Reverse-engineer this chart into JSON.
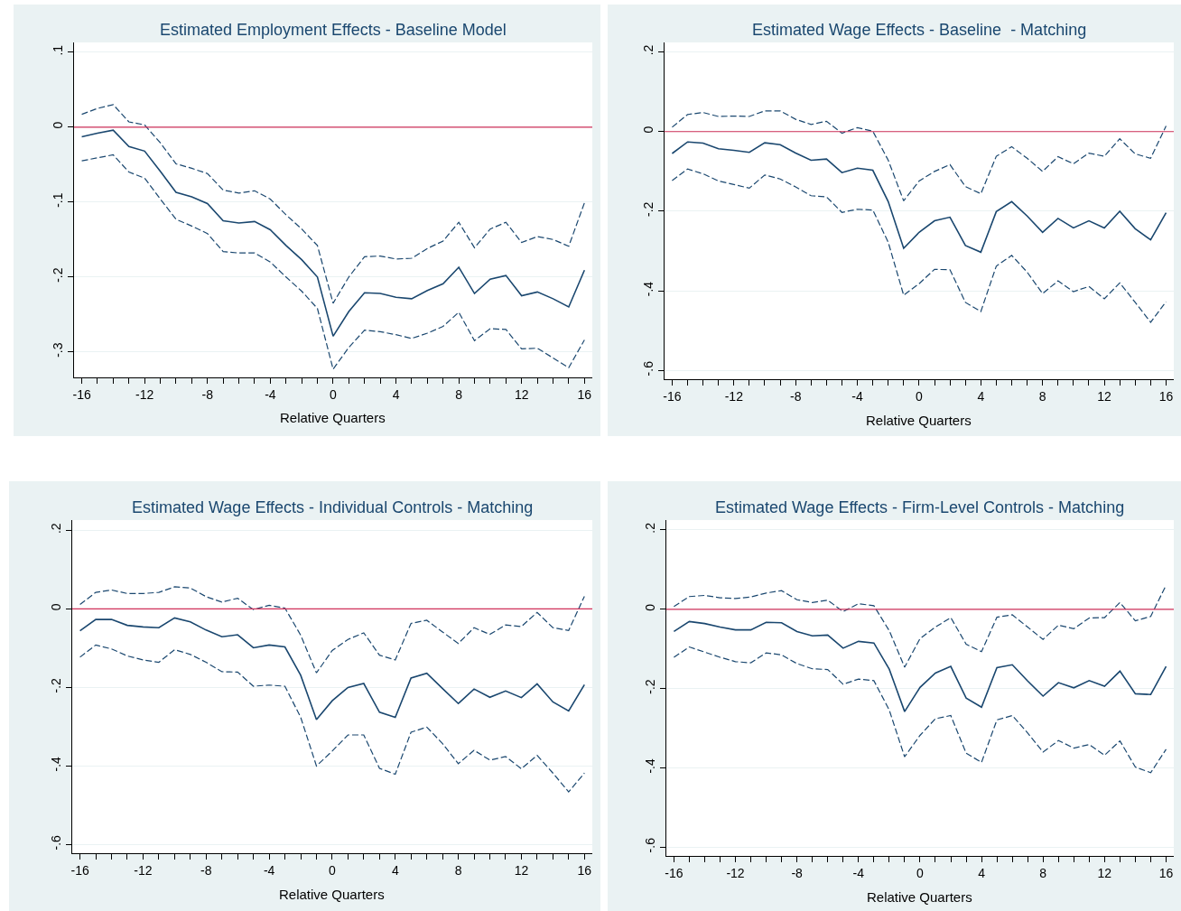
{
  "chart_data": [
    {
      "type": "line",
      "title": "Estimated Employment Effects - Baseline Model",
      "xlabel": "Relative Quarters",
      "grid": "y",
      "x": [
        -16,
        -15,
        -14,
        -13,
        -12,
        -11,
        -10,
        -9,
        -8,
        -7,
        -6,
        -5,
        -4,
        -3,
        -2,
        -1,
        0,
        1,
        2,
        3,
        4,
        5,
        6,
        7,
        8,
        9,
        10,
        11,
        12,
        13,
        14,
        15,
        16
      ],
      "xlim": [
        -16.5,
        16.5
      ],
      "xticks": [
        {
          "value": -16,
          "label": "-16"
        },
        {
          "value": -15,
          "label": null
        },
        {
          "value": -14,
          "label": null
        },
        {
          "value": -13,
          "label": null
        },
        {
          "value": -12,
          "label": "-12"
        },
        {
          "value": -11,
          "label": null
        },
        {
          "value": -10,
          "label": null
        },
        {
          "value": -9,
          "label": null
        },
        {
          "value": -8,
          "label": "-8"
        },
        {
          "value": -7,
          "label": null
        },
        {
          "value": -6,
          "label": null
        },
        {
          "value": -5,
          "label": null
        },
        {
          "value": -4,
          "label": "-4"
        },
        {
          "value": -3,
          "label": null
        },
        {
          "value": -2,
          "label": null
        },
        {
          "value": -1,
          "label": null
        },
        {
          "value": 0,
          "label": "0"
        },
        {
          "value": 1,
          "label": null
        },
        {
          "value": 2,
          "label": null
        },
        {
          "value": 3,
          "label": null
        },
        {
          "value": 4,
          "label": "4"
        },
        {
          "value": 5,
          "label": null
        },
        {
          "value": 6,
          "label": null
        },
        {
          "value": 7,
          "label": null
        },
        {
          "value": 8,
          "label": "8"
        },
        {
          "value": 9,
          "label": null
        },
        {
          "value": 10,
          "label": null
        },
        {
          "value": 11,
          "label": null
        },
        {
          "value": 12,
          "label": "12"
        },
        {
          "value": 13,
          "label": null
        },
        {
          "value": 14,
          "label": null
        },
        {
          "value": 15,
          "label": null
        },
        {
          "value": 16,
          "label": "16"
        }
      ],
      "ylim": [
        -0.334,
        0.113
      ],
      "yticks": [
        {
          "value": -0.3,
          "label": "-.3"
        },
        {
          "value": -0.2,
          "label": "-.2"
        },
        {
          "value": -0.1,
          "label": "-.1"
        },
        {
          "value": 0,
          "label": "0"
        },
        {
          "value": 0.1,
          "label": ".1"
        }
      ],
      "ref_lines": [
        {
          "axis": "y",
          "value": 0,
          "color": "#d0305a"
        }
      ],
      "series": [
        {
          "color": "#1a476f",
          "line_style": "solid",
          "values": [
            -0.013,
            -0.008,
            -0.004,
            -0.026,
            -0.032,
            -0.059,
            -0.087,
            -0.093,
            -0.102,
            -0.125,
            -0.128,
            -0.126,
            -0.137,
            -0.158,
            -0.177,
            -0.2,
            -0.279,
            -0.246,
            -0.221,
            -0.222,
            -0.227,
            -0.229,
            -0.218,
            -0.209,
            -0.187,
            -0.222,
            -0.203,
            -0.198,
            -0.225,
            -0.22,
            -0.229,
            -0.24,
            -0.191
          ]
        },
        {
          "color": "#1a476f",
          "line_style": "dashed",
          "values": [
            0.017,
            0.025,
            0.03,
            0.007,
            0.003,
            -0.021,
            -0.049,
            -0.055,
            -0.062,
            -0.084,
            -0.088,
            -0.085,
            -0.096,
            -0.117,
            -0.136,
            -0.158,
            -0.235,
            -0.2,
            -0.173,
            -0.172,
            -0.176,
            -0.175,
            -0.162,
            -0.152,
            -0.127,
            -0.161,
            -0.136,
            -0.127,
            -0.154,
            -0.146,
            -0.15,
            -0.159,
            -0.101
          ]
        },
        {
          "color": "#1a476f",
          "line_style": "dashed",
          "values": [
            -0.045,
            -0.041,
            -0.037,
            -0.06,
            -0.068,
            -0.096,
            -0.123,
            -0.132,
            -0.142,
            -0.166,
            -0.168,
            -0.168,
            -0.18,
            -0.2,
            -0.219,
            -0.242,
            -0.323,
            -0.294,
            -0.271,
            -0.273,
            -0.277,
            -0.282,
            -0.275,
            -0.266,
            -0.247,
            -0.285,
            -0.269,
            -0.27,
            -0.296,
            -0.295,
            -0.308,
            -0.321,
            -0.284
          ]
        }
      ]
    },
    {
      "type": "line",
      "title": "Estimated Wage Effects - Baseline  - Matching",
      "xlabel": "Relative Quarters",
      "grid": "y",
      "x": [
        -16,
        -15,
        -14,
        -13,
        -12,
        -11,
        -10,
        -9,
        -8,
        -7,
        -6,
        -5,
        -4,
        -3,
        -2,
        -1,
        0,
        1,
        2,
        3,
        4,
        5,
        6,
        7,
        8,
        9,
        10,
        11,
        12,
        13,
        14,
        15,
        16
      ],
      "xlim": [
        -16.5,
        16.5
      ],
      "xticks": [
        {
          "value": -16,
          "label": "-16"
        },
        {
          "value": -15,
          "label": null
        },
        {
          "value": -14,
          "label": null
        },
        {
          "value": -13,
          "label": null
        },
        {
          "value": -12,
          "label": "-12"
        },
        {
          "value": -11,
          "label": null
        },
        {
          "value": -10,
          "label": null
        },
        {
          "value": -9,
          "label": null
        },
        {
          "value": -8,
          "label": "-8"
        },
        {
          "value": -7,
          "label": null
        },
        {
          "value": -6,
          "label": null
        },
        {
          "value": -5,
          "label": null
        },
        {
          "value": -4,
          "label": "-4"
        },
        {
          "value": -3,
          "label": null
        },
        {
          "value": -2,
          "label": null
        },
        {
          "value": -1,
          "label": null
        },
        {
          "value": 0,
          "label": "0"
        },
        {
          "value": 1,
          "label": null
        },
        {
          "value": 2,
          "label": null
        },
        {
          "value": 3,
          "label": null
        },
        {
          "value": 4,
          "label": "4"
        },
        {
          "value": 5,
          "label": null
        },
        {
          "value": 6,
          "label": null
        },
        {
          "value": 7,
          "label": null
        },
        {
          "value": 8,
          "label": "8"
        },
        {
          "value": 9,
          "label": null
        },
        {
          "value": 10,
          "label": null
        },
        {
          "value": 11,
          "label": null
        },
        {
          "value": 12,
          "label": "12"
        },
        {
          "value": 13,
          "label": null
        },
        {
          "value": 14,
          "label": null
        },
        {
          "value": 15,
          "label": null
        },
        {
          "value": 16,
          "label": "16"
        }
      ],
      "ylim": [
        -0.622,
        0.224
      ],
      "yticks": [
        {
          "value": -0.6,
          "label": "-.6"
        },
        {
          "value": -0.4,
          "label": "-.4"
        },
        {
          "value": -0.2,
          "label": "-.2"
        },
        {
          "value": 0,
          "label": "0"
        },
        {
          "value": 0.2,
          "label": ".2"
        }
      ],
      "ref_lines": [
        {
          "axis": "y",
          "value": 0,
          "color": "#d0305a"
        }
      ],
      "series": [
        {
          "color": "#1a476f",
          "line_style": "solid",
          "values": [
            -0.055,
            -0.026,
            -0.029,
            -0.043,
            -0.047,
            -0.052,
            -0.028,
            -0.033,
            -0.054,
            -0.072,
            -0.069,
            -0.103,
            -0.092,
            -0.097,
            -0.176,
            -0.293,
            -0.253,
            -0.224,
            -0.215,
            -0.286,
            -0.303,
            -0.201,
            -0.176,
            -0.212,
            -0.253,
            -0.218,
            -0.242,
            -0.224,
            -0.242,
            -0.2,
            -0.244,
            -0.272,
            -0.204
          ]
        },
        {
          "color": "#1a476f",
          "line_style": "dashed",
          "values": [
            0.011,
            0.043,
            0.048,
            0.038,
            0.039,
            0.038,
            0.052,
            0.052,
            0.031,
            0.018,
            0.026,
            -0.004,
            0.01,
            0.001,
            -0.072,
            -0.174,
            -0.124,
            -0.1,
            -0.083,
            -0.138,
            -0.156,
            -0.062,
            -0.038,
            -0.067,
            -0.1,
            -0.063,
            -0.081,
            -0.054,
            -0.062,
            -0.018,
            -0.056,
            -0.067,
            0.014
          ]
        },
        {
          "color": "#1a476f",
          "line_style": "dashed",
          "values": [
            -0.123,
            -0.094,
            -0.106,
            -0.124,
            -0.133,
            -0.142,
            -0.109,
            -0.119,
            -0.139,
            -0.161,
            -0.164,
            -0.203,
            -0.195,
            -0.197,
            -0.278,
            -0.411,
            -0.382,
            -0.346,
            -0.347,
            -0.429,
            -0.452,
            -0.338,
            -0.311,
            -0.353,
            -0.407,
            -0.375,
            -0.402,
            -0.389,
            -0.42,
            -0.38,
            -0.429,
            -0.479,
            -0.427
          ]
        }
      ]
    },
    {
      "type": "line",
      "title": "Estimated Wage Effects - Individual Controls - Matching",
      "xlabel": "Relative Quarters",
      "grid": "y",
      "x": [
        -16,
        -15,
        -14,
        -13,
        -12,
        -11,
        -10,
        -9,
        -8,
        -7,
        -6,
        -5,
        -4,
        -3,
        -2,
        -1,
        0,
        1,
        2,
        3,
        4,
        5,
        6,
        7,
        8,
        9,
        10,
        11,
        12,
        13,
        14,
        15,
        16
      ],
      "xlim": [
        -16.5,
        16.5
      ],
      "xticks": [
        {
          "value": -16,
          "label": "-16"
        },
        {
          "value": -15,
          "label": null
        },
        {
          "value": -14,
          "label": null
        },
        {
          "value": -13,
          "label": null
        },
        {
          "value": -12,
          "label": "-12"
        },
        {
          "value": -11,
          "label": null
        },
        {
          "value": -10,
          "label": null
        },
        {
          "value": -9,
          "label": null
        },
        {
          "value": -8,
          "label": "-8"
        },
        {
          "value": -7,
          "label": null
        },
        {
          "value": -6,
          "label": null
        },
        {
          "value": -5,
          "label": null
        },
        {
          "value": -4,
          "label": "-4"
        },
        {
          "value": -3,
          "label": null
        },
        {
          "value": -2,
          "label": null
        },
        {
          "value": -1,
          "label": null
        },
        {
          "value": 0,
          "label": "0"
        },
        {
          "value": 1,
          "label": null
        },
        {
          "value": 2,
          "label": null
        },
        {
          "value": 3,
          "label": null
        },
        {
          "value": 4,
          "label": "4"
        },
        {
          "value": 5,
          "label": null
        },
        {
          "value": 6,
          "label": null
        },
        {
          "value": 7,
          "label": null
        },
        {
          "value": 8,
          "label": "8"
        },
        {
          "value": 9,
          "label": null
        },
        {
          "value": 10,
          "label": null
        },
        {
          "value": 11,
          "label": null
        },
        {
          "value": 12,
          "label": "12"
        },
        {
          "value": 13,
          "label": null
        },
        {
          "value": 14,
          "label": null
        },
        {
          "value": 15,
          "label": null
        },
        {
          "value": 16,
          "label": "16"
        }
      ],
      "ylim": [
        -0.622,
        0.226
      ],
      "yticks": [
        {
          "value": -0.6,
          "label": "-.6"
        },
        {
          "value": -0.4,
          "label": "-.4"
        },
        {
          "value": -0.2,
          "label": "-.2"
        },
        {
          "value": 0,
          "label": "0"
        },
        {
          "value": 0.2,
          "label": ".2"
        }
      ],
      "ref_lines": [
        {
          "axis": "y",
          "value": 0,
          "color": "#d0305a"
        }
      ],
      "series": [
        {
          "color": "#1a476f",
          "line_style": "solid",
          "values": [
            -0.056,
            -0.027,
            -0.027,
            -0.042,
            -0.046,
            -0.048,
            -0.023,
            -0.033,
            -0.054,
            -0.071,
            -0.066,
            -0.099,
            -0.092,
            -0.097,
            -0.169,
            -0.282,
            -0.234,
            -0.2,
            -0.19,
            -0.263,
            -0.276,
            -0.176,
            -0.164,
            -0.203,
            -0.241,
            -0.204,
            -0.225,
            -0.209,
            -0.226,
            -0.191,
            -0.237,
            -0.26,
            -0.193
          ]
        },
        {
          "color": "#1a476f",
          "line_style": "dashed",
          "values": [
            0.011,
            0.042,
            0.048,
            0.039,
            0.039,
            0.042,
            0.056,
            0.053,
            0.031,
            0.017,
            0.027,
            -0.002,
            0.009,
            0.002,
            -0.067,
            -0.163,
            -0.106,
            -0.078,
            -0.061,
            -0.118,
            -0.13,
            -0.037,
            -0.029,
            -0.059,
            -0.088,
            -0.048,
            -0.065,
            -0.041,
            -0.045,
            -0.009,
            -0.048,
            -0.055,
            0.032
          ]
        },
        {
          "color": "#1a476f",
          "line_style": "dashed",
          "values": [
            -0.123,
            -0.092,
            -0.102,
            -0.12,
            -0.13,
            -0.136,
            -0.104,
            -0.116,
            -0.136,
            -0.16,
            -0.161,
            -0.197,
            -0.194,
            -0.197,
            -0.276,
            -0.4,
            -0.362,
            -0.321,
            -0.321,
            -0.406,
            -0.421,
            -0.314,
            -0.301,
            -0.343,
            -0.394,
            -0.36,
            -0.385,
            -0.376,
            -0.407,
            -0.373,
            -0.418,
            -0.466,
            -0.418
          ]
        }
      ]
    },
    {
      "type": "line",
      "title": "Estimated Wage Effects - Firm-Level Controls - Matching",
      "xlabel": "Relative Quarters",
      "grid": "y",
      "x": [
        -16,
        -15,
        -14,
        -13,
        -12,
        -11,
        -10,
        -9,
        -8,
        -7,
        -6,
        -5,
        -4,
        -3,
        -2,
        -1,
        0,
        1,
        2,
        3,
        4,
        5,
        6,
        7,
        8,
        9,
        10,
        11,
        12,
        13,
        14,
        15,
        16
      ],
      "xlim": [
        -16.5,
        16.5
      ],
      "xticks": [
        {
          "value": -16,
          "label": "-16"
        },
        {
          "value": -15,
          "label": null
        },
        {
          "value": -14,
          "label": null
        },
        {
          "value": -13,
          "label": null
        },
        {
          "value": -12,
          "label": "-12"
        },
        {
          "value": -11,
          "label": null
        },
        {
          "value": -10,
          "label": null
        },
        {
          "value": -9,
          "label": null
        },
        {
          "value": -8,
          "label": "-8"
        },
        {
          "value": -7,
          "label": null
        },
        {
          "value": -6,
          "label": null
        },
        {
          "value": -5,
          "label": null
        },
        {
          "value": -4,
          "label": "-4"
        },
        {
          "value": -3,
          "label": null
        },
        {
          "value": -2,
          "label": null
        },
        {
          "value": -1,
          "label": null
        },
        {
          "value": 0,
          "label": "0"
        },
        {
          "value": 1,
          "label": null
        },
        {
          "value": 2,
          "label": null
        },
        {
          "value": 3,
          "label": null
        },
        {
          "value": 4,
          "label": "4"
        },
        {
          "value": 5,
          "label": null
        },
        {
          "value": 6,
          "label": null
        },
        {
          "value": 7,
          "label": null
        },
        {
          "value": 8,
          "label": "8"
        },
        {
          "value": 9,
          "label": null
        },
        {
          "value": 10,
          "label": null
        },
        {
          "value": 11,
          "label": null
        },
        {
          "value": 12,
          "label": "12"
        },
        {
          "value": 13,
          "label": null
        },
        {
          "value": 14,
          "label": null
        },
        {
          "value": 15,
          "label": null
        },
        {
          "value": 16,
          "label": "16"
        }
      ],
      "ylim": [
        -0.622,
        0.225
      ],
      "yticks": [
        {
          "value": -0.6,
          "label": "-.6"
        },
        {
          "value": -0.4,
          "label": "-.4"
        },
        {
          "value": -0.2,
          "label": "-.2"
        },
        {
          "value": 0,
          "label": "0"
        },
        {
          "value": 0.2,
          "label": ".2"
        }
      ],
      "ref_lines": [
        {
          "axis": "y",
          "value": 0,
          "color": "#d0305a"
        }
      ],
      "series": [
        {
          "color": "#1a476f",
          "line_style": "solid",
          "values": [
            -0.056,
            -0.031,
            -0.036,
            -0.045,
            -0.052,
            -0.052,
            -0.033,
            -0.034,
            -0.056,
            -0.067,
            -0.065,
            -0.098,
            -0.081,
            -0.085,
            -0.151,
            -0.258,
            -0.197,
            -0.161,
            -0.144,
            -0.224,
            -0.247,
            -0.147,
            -0.14,
            -0.181,
            -0.219,
            -0.185,
            -0.198,
            -0.18,
            -0.194,
            -0.156,
            -0.213,
            -0.215,
            -0.144
          ]
        },
        {
          "color": "#1a476f",
          "line_style": "dashed",
          "values": [
            0.007,
            0.032,
            0.035,
            0.029,
            0.027,
            0.031,
            0.041,
            0.047,
            0.024,
            0.017,
            0.023,
            -0.006,
            0.014,
            0.009,
            -0.054,
            -0.146,
            -0.074,
            -0.045,
            -0.021,
            -0.088,
            -0.107,
            -0.02,
            -0.014,
            -0.045,
            -0.076,
            -0.04,
            -0.049,
            -0.022,
            -0.021,
            0.017,
            -0.029,
            -0.018,
            0.061
          ]
        },
        {
          "color": "#1a476f",
          "line_style": "dashed",
          "values": [
            -0.121,
            -0.095,
            -0.108,
            -0.121,
            -0.132,
            -0.135,
            -0.11,
            -0.115,
            -0.137,
            -0.15,
            -0.152,
            -0.189,
            -0.176,
            -0.18,
            -0.254,
            -0.372,
            -0.318,
            -0.276,
            -0.268,
            -0.363,
            -0.386,
            -0.279,
            -0.268,
            -0.312,
            -0.36,
            -0.331,
            -0.35,
            -0.341,
            -0.368,
            -0.332,
            -0.398,
            -0.412,
            -0.353
          ]
        }
      ]
    }
  ]
}
